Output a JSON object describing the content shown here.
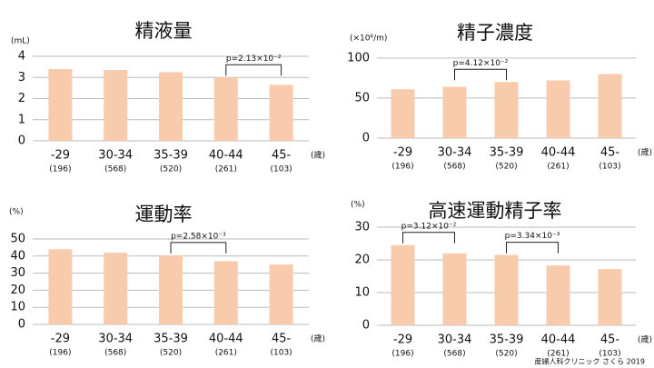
{
  "chart_data": [
    {
      "type": "bar",
      "title": "精液量",
      "y_label": "(mL)",
      "x_unit": "(歳)",
      "categories": [
        "-29",
        "30-34",
        "35-39",
        "40-44",
        "45-"
      ],
      "sample_sizes": [
        "(196)",
        "(568)",
        "(520)",
        "(261)",
        "(103)"
      ],
      "values": [
        3.4,
        3.35,
        3.25,
        3.0,
        2.65
      ],
      "color": "#f8cbad",
      "ylim": [
        0,
        4
      ],
      "yticks": [
        0,
        1,
        2,
        3,
        4
      ],
      "grid": true,
      "annotations": [
        {
          "text": "p=2.13×10⁻²",
          "span": [
            "40-44",
            "45-"
          ]
        }
      ]
    },
    {
      "type": "bar",
      "title": "精子濃度",
      "y_label": "(×10⁶/m)",
      "x_unit": "(歳)",
      "categories": [
        "-29",
        "30-34",
        "35-39",
        "40-44",
        "45-"
      ],
      "sample_sizes": [
        "(196)",
        "(568)",
        "(520)",
        "(261)",
        "(103)"
      ],
      "values": [
        61,
        64,
        70,
        72,
        80
      ],
      "color": "#f8cbad",
      "ylim": [
        0,
        110
      ],
      "yticks": [
        0,
        50,
        100
      ],
      "grid": true,
      "annotations": [
        {
          "text": "p=4.12×10⁻²",
          "span": [
            "30-34",
            "35-39"
          ]
        }
      ]
    },
    {
      "type": "bar",
      "title": "運動率",
      "y_label": "(%)",
      "x_unit": "(歳)",
      "categories": [
        "-29",
        "30-34",
        "35-39",
        "40-44",
        "45-"
      ],
      "sample_sizes": [
        "(196)",
        "(568)",
        "(520)",
        "(261)",
        "(103)"
      ],
      "values": [
        44,
        42,
        40.5,
        37,
        35
      ],
      "color": "#f8cbad",
      "ylim": [
        0,
        50
      ],
      "yticks": [
        0,
        10,
        20,
        30,
        40,
        50
      ],
      "grid": true,
      "annotations": [
        {
          "text": "p=2.58×10⁻³",
          "span": [
            "35-39",
            "40-44"
          ]
        }
      ]
    },
    {
      "type": "bar",
      "title": "高速運動精子率",
      "y_label": "(%)",
      "x_unit": "(歳)",
      "categories": [
        "-29",
        "30-34",
        "35-39",
        "40-44",
        "45-"
      ],
      "sample_sizes": [
        "(196)",
        "(568)",
        "(520)",
        "(261)",
        "(103)"
      ],
      "values": [
        24.5,
        22,
        21.5,
        18.3,
        17.2
      ],
      "color": "#f8cbad",
      "ylim": [
        0,
        30
      ],
      "yticks": [
        0,
        10,
        20,
        30
      ],
      "grid": true,
      "annotations": [
        {
          "text": "p=3.12×10⁻²",
          "span": [
            "-29",
            "30-34"
          ]
        },
        {
          "text": "p=3.34×10⁻³",
          "span": [
            "35-39",
            "40-44"
          ]
        }
      ]
    }
  ],
  "footer": "産婦人科クリニック さくら 2019"
}
